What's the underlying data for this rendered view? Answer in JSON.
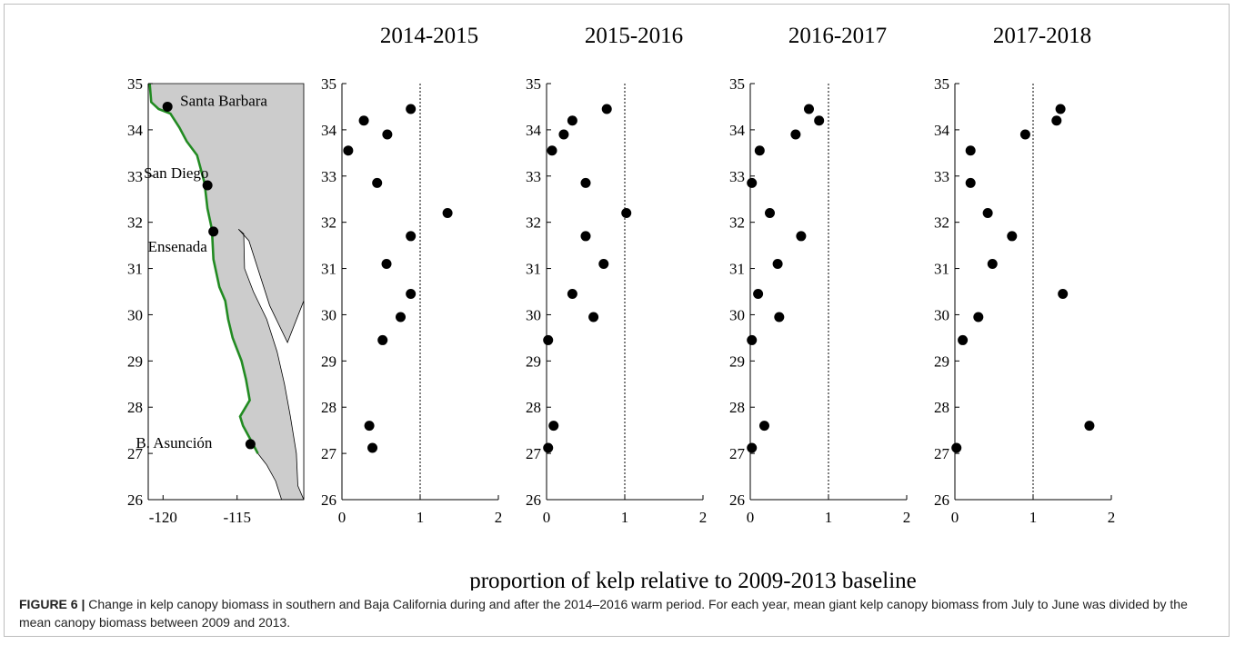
{
  "figure": {
    "xlabel": "proportion of kelp relative to 2009-2013 baseline",
    "caption_label": "FIGURE 6 |",
    "caption_text": " Change in kelp canopy biomass in southern and Baja California during and after the 2014–2016 warm period. For each year, mean giant kelp canopy biomass from July to June was divided by the mean canopy biomass between 2009 and 2013."
  },
  "colors": {
    "land": "#cccccc",
    "coast": "#228b22",
    "marker": "#000000",
    "reference_line": "#000000"
  },
  "map": {
    "x_ticks": [
      -120,
      -115
    ],
    "y_ticks": [
      26,
      27,
      28,
      29,
      30,
      31,
      32,
      33,
      34,
      35
    ],
    "xlim": [
      -121,
      -110.5
    ],
    "ylim": [
      26,
      35
    ],
    "places": [
      {
        "name": "Santa Barbara",
        "lon": -119.7,
        "lat": 34.5
      },
      {
        "name": "San Diego",
        "lon": -117.0,
        "lat": 32.8
      },
      {
        "name": "Ensenada",
        "lon": -116.6,
        "lat": 31.8
      },
      {
        "name": "B. Asunción",
        "lon": -114.1,
        "lat": 27.2
      }
    ]
  },
  "chart_data": [
    {
      "type": "scatter",
      "title": "2014-2015",
      "xlim": [
        0,
        2
      ],
      "ylim": [
        26,
        35
      ],
      "x_ticks": [
        0,
        1,
        2
      ],
      "y_ticks": [
        26,
        27,
        28,
        29,
        30,
        31,
        32,
        33,
        34,
        35
      ],
      "reference_line_x": 1,
      "points": [
        [
          0.88,
          34.45
        ],
        [
          0.28,
          34.2
        ],
        [
          0.58,
          33.9
        ],
        [
          0.08,
          33.55
        ],
        [
          0.45,
          32.85
        ],
        [
          1.35,
          32.2
        ],
        [
          0.88,
          31.7
        ],
        [
          0.57,
          31.1
        ],
        [
          0.88,
          30.45
        ],
        [
          0.75,
          29.95
        ],
        [
          0.52,
          29.45
        ],
        [
          0.35,
          27.6
        ],
        [
          0.39,
          27.12
        ]
      ]
    },
    {
      "type": "scatter",
      "title": "2015-2016",
      "xlim": [
        0,
        2
      ],
      "ylim": [
        26,
        35
      ],
      "x_ticks": [
        0,
        1,
        2
      ],
      "y_ticks": [
        26,
        27,
        28,
        29,
        30,
        31,
        32,
        33,
        34,
        35
      ],
      "reference_line_x": 1,
      "points": [
        [
          0.77,
          34.45
        ],
        [
          0.33,
          34.2
        ],
        [
          0.22,
          33.9
        ],
        [
          0.07,
          33.55
        ],
        [
          0.5,
          32.85
        ],
        [
          1.02,
          32.2
        ],
        [
          0.5,
          31.7
        ],
        [
          0.73,
          31.1
        ],
        [
          0.33,
          30.45
        ],
        [
          0.6,
          29.95
        ],
        [
          0.02,
          29.45
        ],
        [
          0.09,
          27.6
        ],
        [
          0.02,
          27.12
        ]
      ]
    },
    {
      "type": "scatter",
      "title": "2016-2017",
      "xlim": [
        0,
        2
      ],
      "ylim": [
        26,
        35
      ],
      "x_ticks": [
        0,
        1,
        2
      ],
      "y_ticks": [
        26,
        27,
        28,
        29,
        30,
        31,
        32,
        33,
        34,
        35
      ],
      "reference_line_x": 1,
      "points": [
        [
          0.75,
          34.45
        ],
        [
          0.88,
          34.2
        ],
        [
          0.58,
          33.9
        ],
        [
          0.12,
          33.55
        ],
        [
          0.02,
          32.85
        ],
        [
          0.25,
          32.2
        ],
        [
          0.65,
          31.7
        ],
        [
          0.35,
          31.1
        ],
        [
          0.1,
          30.45
        ],
        [
          0.37,
          29.95
        ],
        [
          0.02,
          29.45
        ],
        [
          0.18,
          27.6
        ],
        [
          0.02,
          27.12
        ]
      ]
    },
    {
      "type": "scatter",
      "title": "2017-2018",
      "xlim": [
        0,
        2
      ],
      "ylim": [
        26,
        35
      ],
      "x_ticks": [
        0,
        1,
        2
      ],
      "y_ticks": [
        26,
        27,
        28,
        29,
        30,
        31,
        32,
        33,
        34,
        35
      ],
      "reference_line_x": 1,
      "points": [
        [
          1.35,
          34.45
        ],
        [
          1.3,
          34.2
        ],
        [
          0.9,
          33.9
        ],
        [
          0.2,
          33.55
        ],
        [
          0.2,
          32.85
        ],
        [
          0.42,
          32.2
        ],
        [
          0.73,
          31.7
        ],
        [
          0.48,
          31.1
        ],
        [
          1.38,
          30.45
        ],
        [
          0.3,
          29.95
        ],
        [
          0.1,
          29.45
        ],
        [
          1.72,
          27.6
        ],
        [
          0.02,
          27.12
        ]
      ]
    }
  ]
}
